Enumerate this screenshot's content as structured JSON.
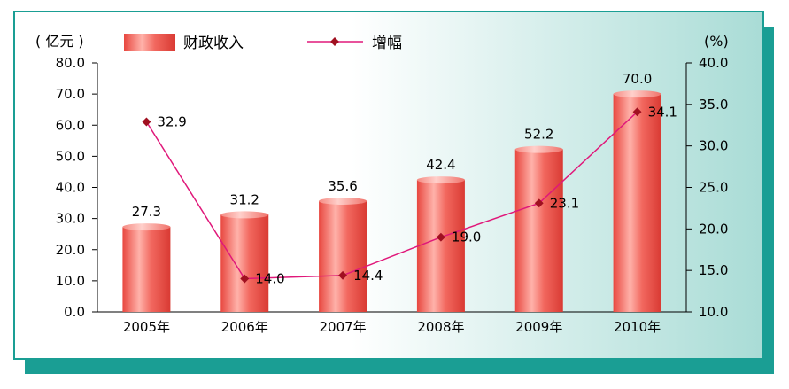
{
  "chart_data": {
    "type": "bar",
    "categories": [
      "2005年",
      "2006年",
      "2007年",
      "2008年",
      "2009年",
      "2010年"
    ],
    "series": [
      {
        "name": "财政收入",
        "type": "bar",
        "axis": "left",
        "values": [
          27.3,
          31.2,
          35.6,
          42.4,
          52.2,
          70.0
        ]
      },
      {
        "name": "增幅",
        "type": "line",
        "axis": "right",
        "values": [
          32.9,
          14.0,
          14.4,
          19.0,
          23.1,
          34.1
        ]
      }
    ],
    "ylabel_left": "( 亿元 )",
    "ylabel_right": "(%)",
    "ylim_left": [
      0,
      80
    ],
    "ylim_right": [
      10,
      40
    ],
    "yticks_left": [
      "0.0",
      "10.0",
      "20.0",
      "30.0",
      "40.0",
      "50.0",
      "60.0",
      "70.0",
      "80.0"
    ],
    "yticks_right": [
      "10.0",
      "15.0",
      "20.0",
      "25.0",
      "30.0",
      "35.0",
      "40.0"
    ],
    "bar_labels": [
      "27.3",
      "31.2",
      "35.6",
      "42.4",
      "52.2",
      "70.0"
    ],
    "line_labels": [
      "32.9",
      "14.0",
      "14.4",
      "19.0",
      "23.1",
      "34.1"
    ],
    "legend_position": "top",
    "grid": false,
    "colors": {
      "bar": "#f0625a",
      "bar_highlight": "#ffb0a8",
      "line": "#e0187a",
      "marker": "#a01020",
      "frame": "#1a9e94",
      "shadow": "#1a9e94",
      "background_left": "#ffffff",
      "background_right": "#a9dcd6"
    }
  }
}
